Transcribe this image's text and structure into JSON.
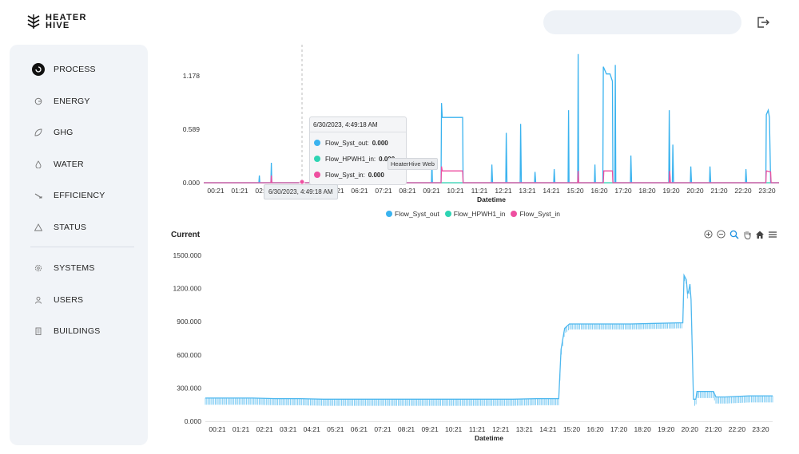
{
  "app": {
    "brand_line1": "HEATER",
    "brand_line2": "HIVE",
    "logo_icon": "hive-logo-icon",
    "search_placeholder": "",
    "logout_icon": "logout-icon"
  },
  "sidebar": {
    "items": [
      {
        "label": "PROCESS",
        "icon": "process-icon"
      },
      {
        "label": "ENERGY",
        "icon": "energy-icon"
      },
      {
        "label": "GHG",
        "icon": "leaf-icon"
      },
      {
        "label": "WATER",
        "icon": "water-drop-icon"
      },
      {
        "label": "EFFICIENCY",
        "icon": "efficiency-icon"
      },
      {
        "label": "STATUS",
        "icon": "warning-icon"
      },
      {
        "label": "SYSTEMS",
        "icon": "gear-icon"
      },
      {
        "label": "USERS",
        "icon": "user-icon"
      },
      {
        "label": "BUILDINGS",
        "icon": "building-icon"
      }
    ]
  },
  "colors": {
    "flow_out": "#3ab3ef",
    "flow_hpwh": "#2dd4b3",
    "flow_in": "#ee4fa0",
    "current": "#4fb8ef",
    "sidebar_bg": "#f1f4f8"
  },
  "tooltip": {
    "timestamp": "6/30/2023, 4:49:18 AM",
    "rows": [
      {
        "label": "Flow_Syst_out:",
        "value": "0.000"
      },
      {
        "label": "Flow_HPWH1_in:",
        "value": "0.000"
      },
      {
        "label": "Flow_Syst_in:",
        "value": "0.000"
      }
    ],
    "overlay_tag": "HeaterHive Web",
    "x_label": "6/30/2023, 4:49:18 AM"
  },
  "chart_data": [
    {
      "type": "line",
      "title": "",
      "xlabel": "Datetime",
      "ylabel": "",
      "ylim": [
        0,
        1.4
      ],
      "y_ticks": [
        "0.000",
        "0.589",
        "1.178"
      ],
      "x_ticks": [
        "00:21",
        "01:21",
        "02:21",
        "03:21",
        "04:21",
        "05:21",
        "06:21",
        "07:21",
        "08:21",
        "09:21",
        "10:21",
        "11:21",
        "12:21",
        "13:21",
        "14:21",
        "15:20",
        "16:20",
        "17:20",
        "18:20",
        "19:20",
        "20:20",
        "21:20",
        "22:20",
        "23:20"
      ],
      "x_range_hours": [
        0,
        24
      ],
      "legend": [
        "Flow_Syst_out",
        "Flow_HPWH1_in",
        "Flow_Syst_in"
      ],
      "legend_position": "bottom-center",
      "series": [
        {
          "name": "Flow_Syst_out",
          "points": [
            [
              0,
              0
            ],
            [
              2.3,
              0
            ],
            [
              2.32,
              0.08
            ],
            [
              2.34,
              0
            ],
            [
              2.8,
              0
            ],
            [
              2.82,
              0.22
            ],
            [
              2.84,
              0
            ],
            [
              9.5,
              0
            ],
            [
              9.52,
              0.25
            ],
            [
              9.54,
              0
            ],
            [
              9.9,
              0
            ],
            [
              9.92,
              0.88
            ],
            [
              9.95,
              0.72
            ],
            [
              10.2,
              0.72
            ],
            [
              10.5,
              0.72
            ],
            [
              10.8,
              0.72
            ],
            [
              10.82,
              0
            ],
            [
              12.0,
              0
            ],
            [
              12.02,
              0.2
            ],
            [
              12.05,
              0
            ],
            [
              12.6,
              0
            ],
            [
              12.62,
              0.55
            ],
            [
              12.65,
              0
            ],
            [
              13.2,
              0
            ],
            [
              13.22,
              0.65
            ],
            [
              13.25,
              0
            ],
            [
              13.8,
              0
            ],
            [
              13.82,
              0.12
            ],
            [
              13.85,
              0
            ],
            [
              14.6,
              0
            ],
            [
              14.62,
              0.15
            ],
            [
              14.65,
              0
            ],
            [
              15.2,
              0
            ],
            [
              15.22,
              0.8
            ],
            [
              15.24,
              0
            ],
            [
              15.6,
              0
            ],
            [
              15.62,
              1.42
            ],
            [
              15.64,
              0
            ],
            [
              16.3,
              0
            ],
            [
              16.32,
              0.2
            ],
            [
              16.34,
              0
            ],
            [
              16.65,
              0
            ],
            [
              16.67,
              1.28
            ],
            [
              16.8,
              1.2
            ],
            [
              16.95,
              1.2
            ],
            [
              17.05,
              1.12
            ],
            [
              17.07,
              0
            ],
            [
              17.15,
              0
            ],
            [
              17.17,
              1.3
            ],
            [
              17.19,
              0
            ],
            [
              17.8,
              0
            ],
            [
              17.82,
              0.3
            ],
            [
              17.85,
              0
            ],
            [
              19.4,
              0
            ],
            [
              19.42,
              0.8
            ],
            [
              19.45,
              0
            ],
            [
              19.55,
              0
            ],
            [
              19.57,
              0.42
            ],
            [
              19.6,
              0
            ],
            [
              20.3,
              0
            ],
            [
              20.32,
              0.18
            ],
            [
              20.35,
              0
            ],
            [
              21.1,
              0
            ],
            [
              21.12,
              0.18
            ],
            [
              21.15,
              0
            ],
            [
              22.6,
              0
            ],
            [
              22.62,
              0.15
            ],
            [
              22.65,
              0
            ],
            [
              23.45,
              0
            ],
            [
              23.47,
              0.75
            ],
            [
              23.55,
              0.8
            ],
            [
              23.6,
              0.72
            ],
            [
              23.65,
              0
            ],
            [
              24,
              0
            ]
          ]
        },
        {
          "name": "Flow_HPWH1_in",
          "points": [
            [
              0,
              0
            ],
            [
              24,
              0
            ]
          ]
        },
        {
          "name": "Flow_Syst_in",
          "points": [
            [
              0,
              0
            ],
            [
              2.8,
              0
            ],
            [
              2.82,
              0.08
            ],
            [
              2.84,
              0
            ],
            [
              9.9,
              0
            ],
            [
              9.92,
              0.18
            ],
            [
              9.95,
              0.13
            ],
            [
              10.8,
              0.13
            ],
            [
              10.82,
              0
            ],
            [
              15.6,
              0
            ],
            [
              15.62,
              0.13
            ],
            [
              15.64,
              0
            ],
            [
              16.67,
              0
            ],
            [
              16.69,
              0.13
            ],
            [
              17.05,
              0.13
            ],
            [
              17.07,
              0
            ],
            [
              19.42,
              0
            ],
            [
              19.44,
              0.13
            ],
            [
              19.47,
              0
            ],
            [
              23.45,
              0
            ],
            [
              23.47,
              0.13
            ],
            [
              23.65,
              0.12
            ],
            [
              23.67,
              0
            ],
            [
              24,
              0
            ]
          ]
        }
      ]
    },
    {
      "type": "line",
      "title": "Current",
      "xlabel": "Datetime",
      "ylabel": "",
      "ylim": [
        0,
        1500
      ],
      "y_ticks": [
        "0.000",
        "300.000",
        "600.000",
        "900.000",
        "1200.000",
        "1500.000"
      ],
      "x_ticks": [
        "00:21",
        "01:21",
        "02:21",
        "03:21",
        "04:21",
        "05:21",
        "06:21",
        "07:21",
        "08:21",
        "09:21",
        "10:21",
        "11:21",
        "12:21",
        "13:21",
        "14:21",
        "15:20",
        "16:20",
        "17:20",
        "18:20",
        "19:20",
        "20:20",
        "21:20",
        "22:20",
        "23:20"
      ],
      "x_range_hours": [
        0,
        24
      ],
      "series": [
        {
          "name": "Current",
          "points": [
            [
              0,
              210
            ],
            [
              1,
              210
            ],
            [
              2,
              210
            ],
            [
              3,
              205
            ],
            [
              4,
              205
            ],
            [
              5,
              200
            ],
            [
              6,
              200
            ],
            [
              7,
              200
            ],
            [
              8,
              200
            ],
            [
              9,
              200
            ],
            [
              10,
              200
            ],
            [
              11,
              200
            ],
            [
              12,
              200
            ],
            [
              13,
              200
            ],
            [
              14,
              205
            ],
            [
              14.95,
              205
            ],
            [
              15.05,
              650
            ],
            [
              15.2,
              840
            ],
            [
              15.4,
              880
            ],
            [
              16,
              880
            ],
            [
              17,
              880
            ],
            [
              18,
              880
            ],
            [
              19,
              885
            ],
            [
              20,
              890
            ],
            [
              20.2,
              890
            ],
            [
              20.25,
              1320
            ],
            [
              20.35,
              1280
            ],
            [
              20.4,
              1150
            ],
            [
              20.45,
              1180
            ],
            [
              20.5,
              1240
            ],
            [
              20.55,
              1100
            ],
            [
              20.65,
              200
            ],
            [
              20.75,
              200
            ],
            [
              20.8,
              270
            ],
            [
              21.5,
              270
            ],
            [
              21.6,
              220
            ],
            [
              22,
              220
            ],
            [
              23,
              230
            ],
            [
              24,
              230
            ]
          ]
        }
      ]
    }
  ]
}
